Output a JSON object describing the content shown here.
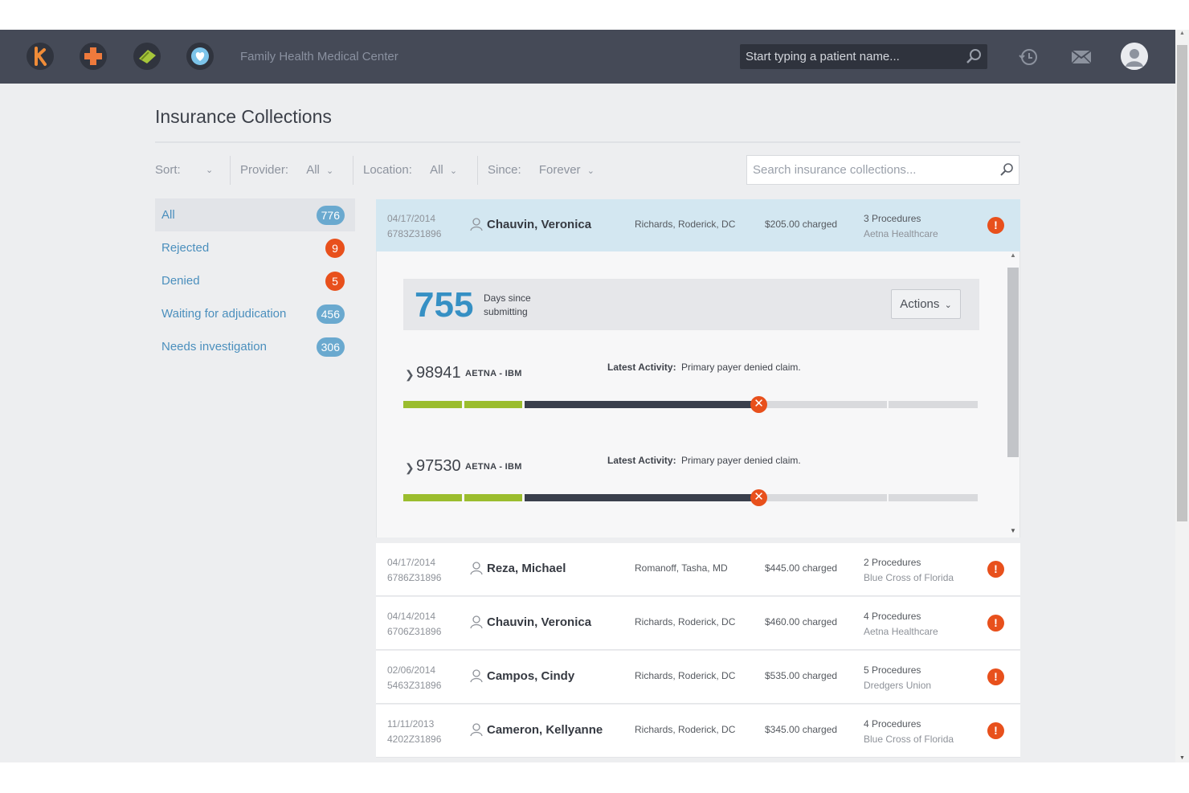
{
  "header": {
    "title": "Family Health Medical Center",
    "search_placeholder": "Start typing a patient name...",
    "app_icons": [
      "k-logo-icon",
      "medical-cross-icon",
      "money-icon",
      "heart-icon"
    ],
    "right_icons": [
      "history-icon",
      "mail-icon",
      "user-avatar-icon"
    ]
  },
  "page": {
    "title": "Insurance Collections"
  },
  "filters": {
    "sort_label": "Sort:",
    "sort_value": "",
    "provider_label": "Provider:",
    "provider_value": "All",
    "location_label": "Location:",
    "location_value": "All",
    "since_label": "Since:",
    "since_value": "Forever",
    "search_placeholder": "Search insurance collections..."
  },
  "sidebar": {
    "items": [
      {
        "label": "All",
        "count": "776",
        "color": "#6aa9cf",
        "active": true
      },
      {
        "label": "Rejected",
        "count": "9",
        "color": "#e8501c",
        "active": false
      },
      {
        "label": "Denied",
        "count": "5",
        "color": "#e8501c",
        "active": false
      },
      {
        "label": "Waiting for adjudication",
        "count": "456",
        "color": "#6aa9cf",
        "active": false
      },
      {
        "label": "Needs investigation",
        "count": "306",
        "color": "#6aa9cf",
        "active": false
      }
    ]
  },
  "selected": {
    "date": "04/17/2014",
    "code": "6783Z31896",
    "name": "Chauvin, Veronica",
    "provider": "Richards, Roderick, DC",
    "charged": "$205.00 charged",
    "procedures": "3 Procedures",
    "insurer": "Aetna Healthcare",
    "days": "755",
    "days_label_1": "Days since",
    "days_label_2": "submitting",
    "actions_label": "Actions",
    "claims": [
      {
        "number": "98941",
        "payer": "AETNA - IBM",
        "activity_label": "Latest Activity:",
        "activity": "Primary payer denied claim.",
        "progress": 0.62
      },
      {
        "number": "97530",
        "payer": "AETNA - IBM",
        "activity_label": "Latest Activity:",
        "activity": "Primary payer denied claim.",
        "progress": 0.62
      }
    ]
  },
  "rows": [
    {
      "date": "04/17/2014",
      "code": "6786Z31896",
      "name": "Reza, Michael",
      "provider": "Romanoff, Tasha, MD",
      "charged": "$445.00 charged",
      "procedures": "2 Procedures",
      "insurer": "Blue Cross of Florida"
    },
    {
      "date": "04/14/2014",
      "code": "6706Z31896",
      "name": "Chauvin, Veronica",
      "provider": "Richards, Roderick, DC",
      "charged": "$460.00 charged",
      "procedures": "4 Procedures",
      "insurer": "Aetna Healthcare"
    },
    {
      "date": "02/06/2014",
      "code": "5463Z31896",
      "name": "Campos, Cindy",
      "provider": "Richards, Roderick, DC",
      "charged": "$535.00 charged",
      "procedures": "5 Procedures",
      "insurer": "Dredgers Union"
    },
    {
      "date": "11/11/2013",
      "code": "4202Z31896",
      "name": "Cameron, Kellyanne",
      "provider": "Richards, Roderick, DC",
      "charged": "$345.00 charged",
      "procedures": "4 Procedures",
      "insurer": "Blue Cross of Florida"
    }
  ],
  "colors": {
    "topbar": "#454a57",
    "accent_blue": "#3690c4",
    "alert": "#e8501c",
    "progress_done": "#9bbd2e",
    "progress_active": "#3a3f4c",
    "progress_pending": "#d9dadd",
    "selected_row": "#d3e7f1"
  }
}
